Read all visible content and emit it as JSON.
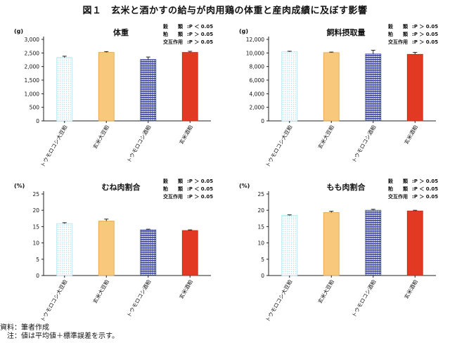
{
  "figure_title": "図１　玄米と酒かすの給与が肉用鶏の体重と産肉成績に及ぼす影響",
  "source_note": "資料：筆者作成",
  "footnote": "　注：値は平均値＋標準誤差を示す。",
  "colors": {
    "corn_soy": "#aee0ee",
    "brown_rice_soy": "#f8c87c",
    "corn_sake": "#3a43a0",
    "brown_rice_sake": "#e23a22",
    "axis": "#222222"
  },
  "chart_data": [
    {
      "type": "bar",
      "title": "体重",
      "unit": "(g)",
      "categories": [
        "トウモロコシ大豆粕",
        "玄米大豆粕",
        "トウモロコシ酒粕",
        "玄米酒粕"
      ],
      "values": [
        2330,
        2520,
        2260,
        2520
      ],
      "errors": [
        50,
        30,
        90,
        40
      ],
      "ylim": [
        0,
        3000
      ],
      "yticks": [
        "0",
        "500",
        "1,000",
        "1,500",
        "2,000",
        "2,500",
        "3,000"
      ],
      "stats": [
        {
          "label": "穀　　類",
          "value": ":P ＜ 0.05"
        },
        {
          "label": "粕　　類",
          "value": ":P ＞ 0.05"
        },
        {
          "label": "交互作用",
          "value": ":P ＞ 0.05"
        }
      ]
    },
    {
      "type": "bar",
      "title": "飼料摂取量",
      "unit": "(g)",
      "categories": [
        "トウモロコシ大豆粕",
        "玄米大豆粕",
        "トウモロコシ酒粕",
        "玄米酒粕"
      ],
      "values": [
        10150,
        10050,
        9850,
        9800
      ],
      "errors": [
        100,
        80,
        550,
        280
      ],
      "ylim": [
        0,
        12000
      ],
      "yticks": [
        "0",
        "2,000",
        "4,000",
        "6,000",
        "8,000",
        "10,000",
        "12,000"
      ],
      "stats": [
        {
          "label": "穀　　類",
          "value": ":P ＞ 0.05"
        },
        {
          "label": "粕　　類",
          "value": ":P ＞ 0.05"
        },
        {
          "label": "交互作用",
          "value": ":P ＞ 0.05"
        }
      ]
    },
    {
      "type": "bar",
      "title": "むね肉割合",
      "unit": "(%)",
      "categories": [
        "トウモロコシ大豆粕",
        "玄米大豆粕",
        "トウモロコシ酒粕",
        "玄米酒粕"
      ],
      "values": [
        15.9,
        16.7,
        14.0,
        13.8
      ],
      "errors": [
        0.3,
        0.6,
        0.2,
        0.2
      ],
      "ylim": [
        0,
        25
      ],
      "yticks": [
        "0",
        "5",
        "10",
        "15",
        "20",
        "25"
      ],
      "stats": [
        {
          "label": "穀　　類",
          "value": ":P ＞ 0.05"
        },
        {
          "label": "粕　　類",
          "value": ":P ＜ 0.05"
        },
        {
          "label": "交互作用",
          "value": ":P ＞ 0.05"
        }
      ]
    },
    {
      "type": "bar",
      "title": "もも肉割合",
      "unit": "(%)",
      "categories": [
        "トウモロコシ大豆粕",
        "玄米大豆粕",
        "トウモロコシ酒粕",
        "玄米酒粕"
      ],
      "values": [
        18.4,
        19.3,
        20.0,
        19.8
      ],
      "errors": [
        0.2,
        0.4,
        0.3,
        0.2
      ],
      "ylim": [
        0,
        25
      ],
      "yticks": [
        "0",
        "5",
        "10",
        "15",
        "20",
        "25"
      ],
      "stats": [
        {
          "label": "穀　　類",
          "value": ":P ＞ 0.05"
        },
        {
          "label": "粕　　類",
          "value": ":P ＜ 0.05"
        },
        {
          "label": "交互作用",
          "value": ":P ＞ 0.05"
        }
      ]
    }
  ]
}
